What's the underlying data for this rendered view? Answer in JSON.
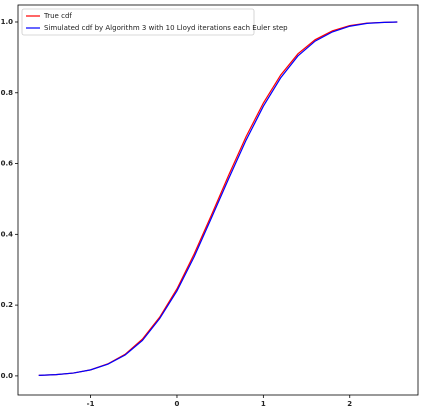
{
  "chart_data": {
    "type": "line",
    "x": [
      -1.6,
      -1.4,
      -1.2,
      -1.0,
      -0.8,
      -0.6,
      -0.4,
      -0.2,
      0,
      0.2,
      0.4,
      0.6,
      0.8,
      1.0,
      1.2,
      1.4,
      1.6,
      1.8,
      2.0,
      2.2,
      2.4,
      2.55
    ],
    "series": [
      {
        "name": "True cdf",
        "color": "#ff0000",
        "values": [
          0.0015,
          0.0036,
          0.008,
          0.017,
          0.034,
          0.061,
          0.104,
          0.166,
          0.246,
          0.345,
          0.455,
          0.568,
          0.676,
          0.771,
          0.85,
          0.91,
          0.95,
          0.975,
          0.99,
          0.997,
          0.999,
          1.0
        ]
      },
      {
        "name": "Simulated cdf by Algorithm 3 with 10 Lloyd iterations each Euler step",
        "color": "#0000ff",
        "values": [
          0.0015,
          0.0036,
          0.008,
          0.017,
          0.033,
          0.059,
          0.1,
          0.162,
          0.24,
          0.337,
          0.447,
          0.558,
          0.666,
          0.762,
          0.842,
          0.904,
          0.946,
          0.972,
          0.988,
          0.996,
          0.999,
          1.0
        ]
      }
    ],
    "xlim": [
      -1.84,
      2.79
    ],
    "ylim": [
      -0.054,
      1.048
    ],
    "xticks": [
      -1,
      0,
      1,
      2
    ],
    "yticks": [
      {
        "value": 0,
        "label": "0.0"
      },
      0.2,
      0.4,
      0.6,
      0.8,
      {
        "value": 1,
        "label": "1.0"
      }
    ],
    "legend": "upper left"
  }
}
